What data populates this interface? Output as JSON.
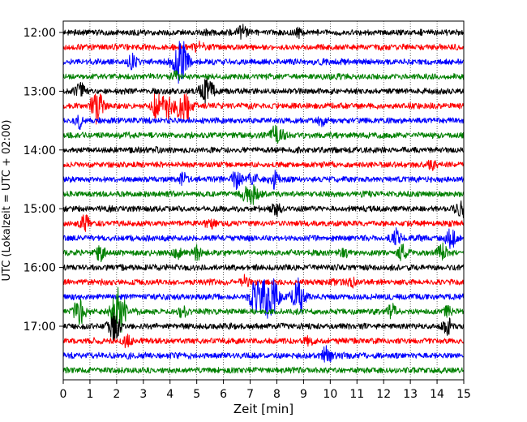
{
  "chart_data": {
    "type": "line",
    "title": "",
    "xlabel": "Zeit  [min]",
    "ylabel": "UTC (Lokalzeit = UTC + 02:00)",
    "xlim": [
      0,
      15
    ],
    "x_ticks": [
      0,
      1,
      2,
      3,
      4,
      5,
      6,
      7,
      8,
      9,
      10,
      11,
      12,
      13,
      14,
      15
    ],
    "y_ticks": [
      "12:00",
      "13:00",
      "14:00",
      "15:00",
      "16:00",
      "17:00"
    ],
    "y_tick_rows": [
      0,
      4,
      8,
      12,
      16,
      20
    ],
    "grid_vertical": true,
    "grid_style": "dotted",
    "color_cycle": [
      "#000000",
      "#ff0000",
      "#0000ff",
      "#008000"
    ],
    "rows_per_hour": 4,
    "row_minutes": 15,
    "series": [
      {
        "start": "12:00",
        "events": [
          [
            6.7,
            0.5
          ],
          [
            8.8,
            0.3
          ]
        ]
      },
      {
        "start": "12:15",
        "events": [
          [
            5.1,
            0.35
          ]
        ]
      },
      {
        "start": "12:30",
        "events": [
          [
            2.6,
            0.5
          ],
          [
            4.35,
            1.6
          ],
          [
            4.6,
            0.5
          ]
        ]
      },
      {
        "start": "12:45",
        "events": [
          [
            4.2,
            0.3
          ]
        ]
      },
      {
        "start": "13:00",
        "events": [
          [
            0.6,
            0.7
          ],
          [
            5.3,
            0.9
          ],
          [
            5.5,
            0.5
          ]
        ]
      },
      {
        "start": "13:15",
        "events": [
          [
            1.25,
            1.2
          ],
          [
            3.5,
            0.9
          ],
          [
            3.9,
            0.8
          ],
          [
            4.6,
            1.0
          ],
          [
            4.3,
            0.6
          ]
        ]
      },
      {
        "start": "13:30",
        "events": [
          [
            0.6,
            0.5
          ],
          [
            9.7,
            0.35
          ]
        ]
      },
      {
        "start": "13:45",
        "events": [
          [
            7.9,
            0.6
          ],
          [
            8.2,
            0.3
          ]
        ]
      },
      {
        "start": "14:00",
        "events": []
      },
      {
        "start": "14:15",
        "events": [
          [
            13.8,
            0.3
          ]
        ]
      },
      {
        "start": "14:30",
        "events": [
          [
            4.5,
            0.4
          ],
          [
            6.5,
            0.7
          ],
          [
            7.9,
            0.6
          ],
          [
            7.1,
            0.4
          ]
        ]
      },
      {
        "start": "14:45",
        "events": [
          [
            7.1,
            0.8
          ],
          [
            6.8,
            0.4
          ]
        ]
      },
      {
        "start": "15:00",
        "events": [
          [
            8.0,
            0.5
          ],
          [
            14.9,
            0.7
          ]
        ]
      },
      {
        "start": "15:15",
        "events": [
          [
            0.8,
            0.6
          ],
          [
            5.5,
            0.3
          ]
        ]
      },
      {
        "start": "15:30",
        "events": [
          [
            12.5,
            0.6
          ],
          [
            14.5,
            0.8
          ]
        ]
      },
      {
        "start": "15:45",
        "events": [
          [
            1.4,
            0.5
          ],
          [
            4.3,
            0.4
          ],
          [
            5.0,
            0.5
          ],
          [
            10.5,
            0.3
          ],
          [
            12.7,
            0.5
          ],
          [
            14.2,
            0.6
          ]
        ]
      },
      {
        "start": "16:00",
        "events": []
      },
      {
        "start": "16:15",
        "events": [
          [
            6.8,
            0.4
          ],
          [
            10.8,
            0.3
          ]
        ]
      },
      {
        "start": "16:30",
        "events": [
          [
            7.2,
            1.2
          ],
          [
            7.8,
            1.6
          ],
          [
            8.8,
            1.3
          ],
          [
            7.5,
            0.8
          ]
        ]
      },
      {
        "start": "16:45",
        "events": [
          [
            0.6,
            1.0
          ],
          [
            2.0,
            1.3
          ],
          [
            2.2,
            0.8
          ],
          [
            4.5,
            0.5
          ],
          [
            12.3,
            0.5
          ],
          [
            14.4,
            0.3
          ]
        ]
      },
      {
        "start": "17:00",
        "events": [
          [
            1.9,
            1.0
          ],
          [
            14.4,
            0.5
          ]
        ]
      },
      {
        "start": "17:15",
        "events": [
          [
            2.4,
            0.4
          ],
          [
            9.2,
            0.3
          ]
        ]
      },
      {
        "start": "17:30",
        "events": [
          [
            9.9,
            0.8
          ]
        ]
      },
      {
        "start": "17:45",
        "events": []
      }
    ]
  }
}
